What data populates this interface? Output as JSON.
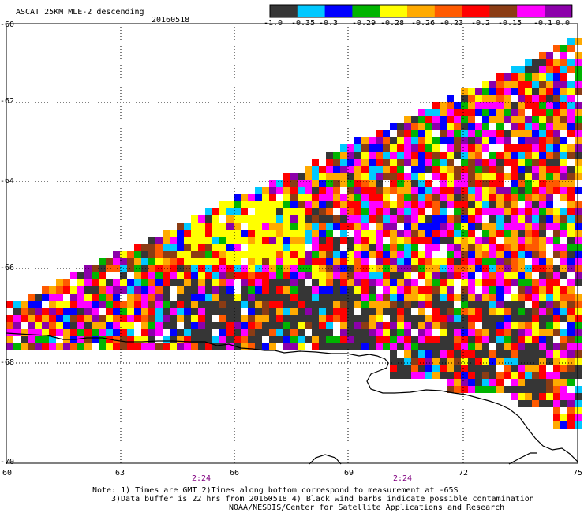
{
  "header": {
    "title": "ASCAT 25KM MLE-2 descending",
    "date": "20160518"
  },
  "legend": {
    "ticks": [
      "-1.0",
      "-0.35",
      "-0.3",
      "-0.29",
      "-0.28",
      "-0.26",
      "-0.23",
      "-0.2",
      "-0.15",
      "-0.1",
      "0.0"
    ],
    "colors": [
      "#363636",
      "#00c8ff",
      "#0000ff",
      "#00b400",
      "#ffff00",
      "#ffaa00",
      "#ff5a00",
      "#ff0000",
      "#8b3c14",
      "#ff00ff",
      "#8c00aa"
    ]
  },
  "axes": {
    "x_ticks": [
      "60",
      "63",
      "66",
      "69",
      "72",
      "75"
    ],
    "x_values": [
      60,
      63,
      66,
      69,
      72,
      75
    ],
    "y_ticks": [
      "-60",
      "-62",
      "-64",
      "-66",
      "-68",
      "-70"
    ],
    "y_values": [
      -60,
      -62,
      -64,
      -66,
      -68,
      -70
    ],
    "lon_range": [
      60,
      75
    ],
    "lat_range": [
      -60,
      -70
    ]
  },
  "times": [
    "2:24",
    "2:24"
  ],
  "notes": {
    "line1": "Note: 1) Times are GMT 2)Times along bottom correspond to measurement at -65S",
    "line2": "3)Data buffer is 22 hrs from 20160518 4) Black wind barbs indicate possible contamination",
    "line3": "NOAA/NESDIS/Center for Satellite Applications and Research"
  }
}
